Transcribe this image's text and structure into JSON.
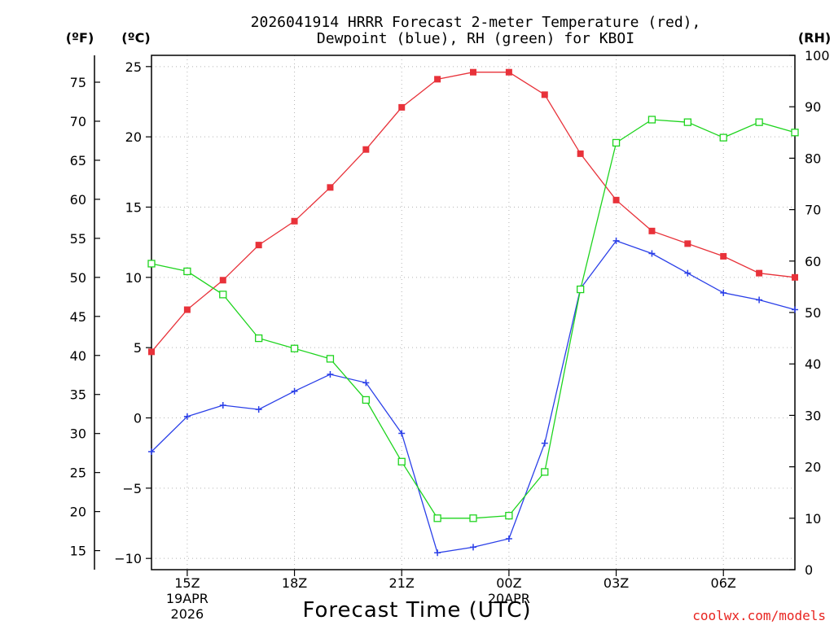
{
  "chart_data": {
    "type": "line",
    "title": [
      "2026041914 HRRR Forecast 2-meter Temperature (red),",
      "Dewpoint (blue), RH (green) for KBOI"
    ],
    "xlabel": "Forecast Time (UTC)",
    "credit": "coolwx.com/models",
    "credit_color": "#e8231f",
    "left_outer_unit": "(ºF)",
    "left_inner_unit": "(ºC)",
    "right_unit": "(RH)",
    "x": [
      "14Z",
      "15Z",
      "16Z",
      "17Z",
      "18Z",
      "19Z",
      "20Z",
      "21Z",
      "22Z",
      "23Z",
      "00Z",
      "01Z",
      "02Z",
      "03Z",
      "04Z",
      "05Z",
      "06Z",
      "07Z",
      "08Z"
    ],
    "x_ticks": [
      {
        "index": 1,
        "lines": [
          "15Z",
          "19APR",
          "2026"
        ]
      },
      {
        "index": 4,
        "lines": [
          "18Z"
        ]
      },
      {
        "index": 7,
        "lines": [
          "21Z"
        ]
      },
      {
        "index": 10,
        "lines": [
          "00Z",
          "20APR"
        ]
      },
      {
        "index": 13,
        "lines": [
          "03Z"
        ]
      },
      {
        "index": 16,
        "lines": [
          "06Z"
        ]
      }
    ],
    "celsius_axis": {
      "ylim": [
        -10.8,
        25.8
      ],
      "ticks": [
        "25",
        "20",
        "15",
        "10",
        "5",
        "0",
        "−5",
        "−10"
      ],
      "tick_values": [
        25,
        20,
        15,
        10,
        5,
        0,
        -5,
        -10
      ]
    },
    "fahrenheit_axis": {
      "ticks": [
        "75",
        "70",
        "65",
        "60",
        "55",
        "50",
        "45",
        "40",
        "35",
        "30",
        "25",
        "20",
        "15"
      ],
      "tick_values": [
        75,
        70,
        65,
        60,
        55,
        50,
        45,
        40,
        35,
        30,
        25,
        20,
        15
      ]
    },
    "rh_axis": {
      "ylim": [
        0,
        100
      ],
      "ticks": [
        "100",
        "90",
        "80",
        "70",
        "60",
        "50",
        "40",
        "30",
        "20",
        "10",
        "0"
      ],
      "tick_values": [
        100,
        90,
        80,
        70,
        60,
        50,
        40,
        30,
        20,
        10,
        0
      ]
    },
    "series": [
      {
        "name": "Temperature",
        "axis": "celsius",
        "color": "#e8323a",
        "marker": "square-filled",
        "values": [
          4.7,
          7.7,
          9.8,
          12.3,
          14.0,
          16.4,
          19.1,
          22.1,
          24.1,
          24.6,
          24.6,
          23.0,
          18.8,
          15.5,
          13.3,
          12.4,
          11.5,
          10.3,
          10.0
        ]
      },
      {
        "name": "Dewpoint",
        "axis": "celsius",
        "color": "#2a3fe8",
        "marker": "plus",
        "values": [
          -2.4,
          0.1,
          0.9,
          0.6,
          1.9,
          3.1,
          2.5,
          -1.1,
          -9.6,
          -9.2,
          -8.6,
          -1.8,
          9.2,
          12.6,
          11.7,
          10.3,
          8.9,
          8.4,
          7.7
        ]
      },
      {
        "name": "RH",
        "axis": "rh",
        "color": "#1ed41e",
        "marker": "square-open",
        "values": [
          59.5,
          58.0,
          53.5,
          45.0,
          43.0,
          41.0,
          33.0,
          21.0,
          10.0,
          10.0,
          10.5,
          19.0,
          54.5,
          83.0,
          87.5,
          87.0,
          84.0,
          87.0,
          85.0
        ]
      }
    ],
    "grid": true
  }
}
